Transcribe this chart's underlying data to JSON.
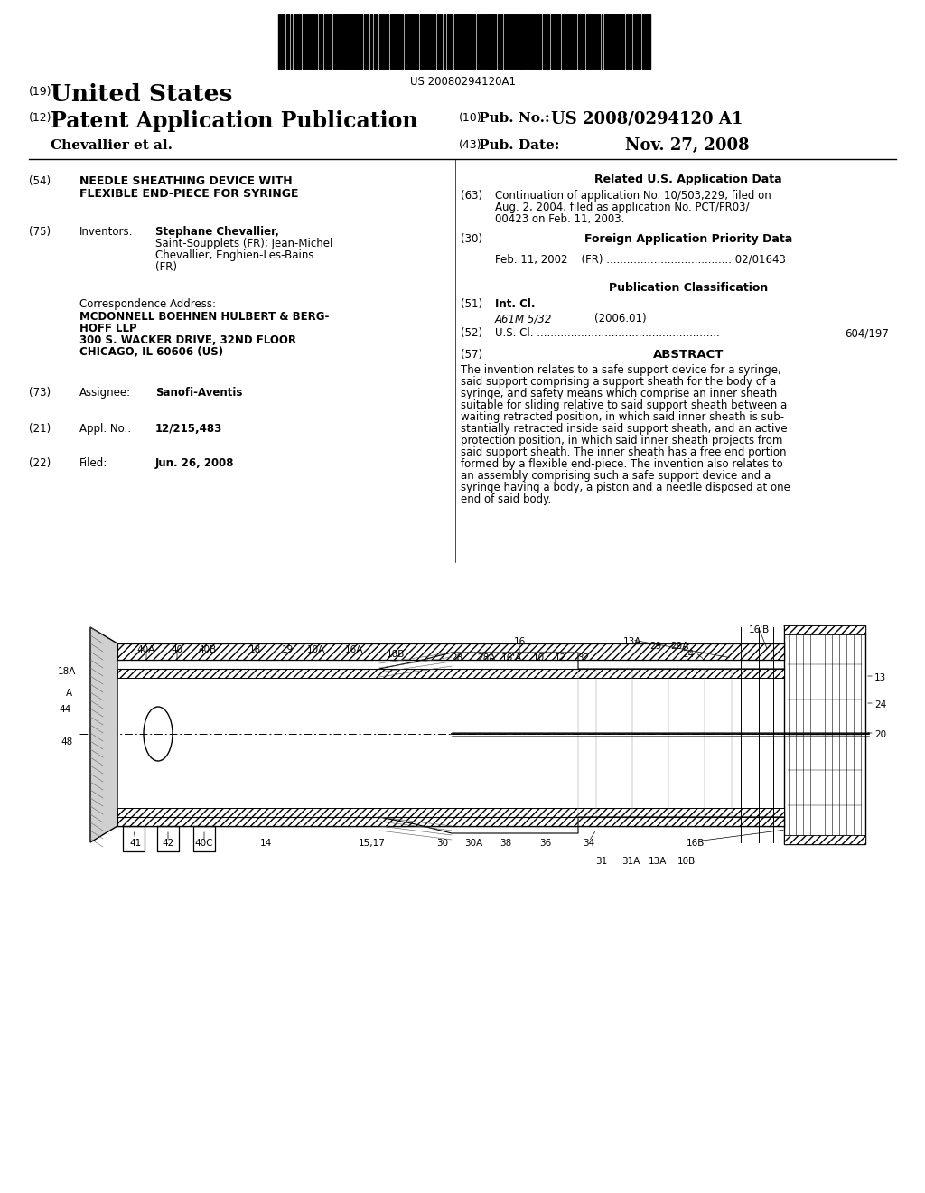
{
  "bg": "#ffffff",
  "barcode_text": "US 20080294120A1",
  "country": "United States",
  "pub_type": "Patent Application Publication",
  "pub_num_label": "Pub. No.:",
  "pub_num": "US 2008/0294120 A1",
  "pub_date_label": "Pub. Date:",
  "pub_date": "Nov. 27, 2008",
  "authors": "Chevallier et al.",
  "num_19": "(19)",
  "num_12": "(12)",
  "num_10": "(10)",
  "num_43": "(43)",
  "title_num": "(54)",
  "title_line1": "NEEDLE SHEATHING DEVICE WITH",
  "title_line2": "FLEXIBLE END-PIECE FOR SYRINGE",
  "inventors_num": "(75)",
  "inventors_label": "Inventors:",
  "inv1": "Stephane Chevallier,",
  "inv2": "Saint-Soupplets (FR); Jean-Michel",
  "inv3": "Chevallier, Enghien-Les-Bains",
  "inv4": "(FR)",
  "corr_label": "Correspondence Address:",
  "corr1": "MCDONNELL BOEHNEN HULBERT & BERG-",
  "corr2": "HOFF LLP",
  "corr3": "300 S. WACKER DRIVE, 32ND FLOOR",
  "corr4": "CHICAGO, IL 60606 (US)",
  "assignee_num": "(73)",
  "assignee_label": "Assignee:",
  "assignee_val": "Sanofi-Aventis",
  "appl_num": "(21)",
  "appl_label": "Appl. No.:",
  "appl_val": "12/215,483",
  "filed_num": "(22)",
  "filed_label": "Filed:",
  "filed_val": "Jun. 26, 2008",
  "related_header": "Related U.S. Application Data",
  "num_63": "(63)",
  "cont1": "Continuation of application No. 10/503,229, filed on",
  "cont2": "Aug. 2, 2004, filed as application No. PCT/FR03/",
  "cont3": "00423 on Feb. 11, 2003.",
  "num_30": "(30)",
  "foreign_header": "Foreign Application Priority Data",
  "priority_line": "Feb. 11, 2002    (FR) ..................................... 02/01643",
  "pub_class_header": "Publication Classification",
  "num_51": "(51)",
  "int_cl_label": "Int. Cl.",
  "int_cl_val": "A61M 5/32",
  "int_cl_year": "(2006.01)",
  "num_52": "(52)",
  "us_cl_label": "U.S. Cl. ......................................................",
  "us_cl_val": "604/197",
  "num_57": "(57)",
  "abstract_header": "ABSTRACT",
  "abs1": "The invention relates to a safe support device for a syringe,",
  "abs2": "said support comprising a support sheath for the body of a",
  "abs3": "syringe, and safety means which comprise an inner sheath",
  "abs4": "suitable for sliding relative to said support sheath between a",
  "abs5": "waiting retracted position, in which said inner sheath is sub-",
  "abs6": "stantially retracted inside said support sheath, and an active",
  "abs7": "protection position, in which said inner sheath projects from",
  "abs8": "said support sheath. The inner sheath has a free end portion",
  "abs9": "formed by a flexible end-piece. The invention also relates to",
  "abs10": "an assembly comprising such a safe support device and a",
  "abs11": "syringe having a body, a piston and a needle disposed at one",
  "abs12": "end of said body."
}
